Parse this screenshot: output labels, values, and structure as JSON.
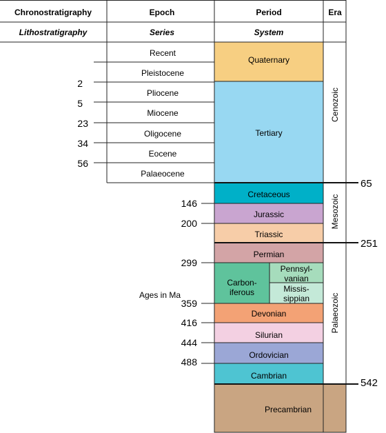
{
  "headers": {
    "row1": [
      "Chronostratigraphy",
      "Epoch",
      "Period",
      "Era"
    ],
    "row2": [
      "Lithostratigraphy",
      "Series",
      "System",
      ""
    ]
  },
  "epochs": [
    "Recent",
    "Pleistocene",
    "Pliocene",
    "Miocene",
    "Oligocene",
    "Eocene",
    "Palaeocene"
  ],
  "epoch_ages": [
    "2",
    "5",
    "23",
    "34",
    "56"
  ],
  "periods": [
    {
      "label": "Quaternary",
      "color": "#f7cf82"
    },
    {
      "label": "Tertiary",
      "color": "#98d8f2"
    },
    {
      "label": "Cretaceous",
      "color": "#00b0c8"
    },
    {
      "label": "Jurassic",
      "color": "#c9a5d0"
    },
    {
      "label": "Triassic",
      "color": "#f7cda8"
    },
    {
      "label": "Permian",
      "color": "#d3a4a6"
    },
    {
      "label": "Carbon-\niferous",
      "color": "#5fc39c"
    },
    {
      "label": "Pennsyl-\nvanian",
      "color": "#a6dcbc"
    },
    {
      "label": "Missis-\nsippian",
      "color": "#c4e9d8"
    },
    {
      "label": "Devonian",
      "color": "#f3a275"
    },
    {
      "label": "Silurian",
      "color": "#f3d0e2"
    },
    {
      "label": "Ordovician",
      "color": "#9ba7d6"
    },
    {
      "label": "Cambrian",
      "color": "#4ec4d2"
    },
    {
      "label": "Precambrian",
      "color": "#c9a582"
    }
  ],
  "period_ages": [
    "146",
    "200",
    "299",
    "359",
    "416",
    "444",
    "488"
  ],
  "era_boundary_ages": [
    "65",
    "251",
    "542"
  ],
  "eras": [
    "Cenozoic",
    "Mesozoic",
    "Palaeozoic"
  ],
  "ages_label": "Ages in Ma"
}
